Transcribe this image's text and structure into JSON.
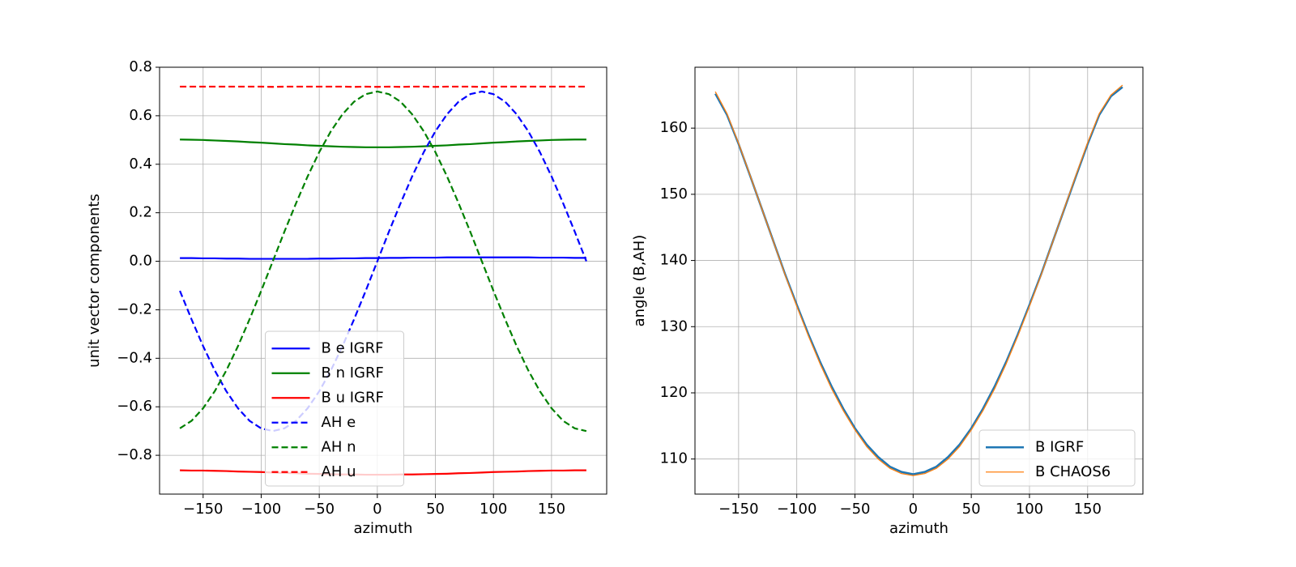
{
  "chart_data": [
    {
      "type": "line",
      "xlabel": "azimuth",
      "ylabel": "unit vector components",
      "x": [
        -170,
        -160,
        -150,
        -140,
        -130,
        -120,
        -110,
        -100,
        -90,
        -80,
        -70,
        -60,
        -50,
        -40,
        -30,
        -20,
        -10,
        0,
        10,
        20,
        30,
        40,
        50,
        60,
        70,
        80,
        90,
        100,
        110,
        120,
        130,
        140,
        150,
        160,
        170,
        180
      ],
      "series": [
        {
          "name": "B e IGRF",
          "color": "#0000ff",
          "style": "solid",
          "width": 2.2,
          "values": [
            0.013,
            0.013,
            0.012,
            0.012,
            0.011,
            0.011,
            0.01,
            0.01,
            0.01,
            0.01,
            0.01,
            0.01,
            0.011,
            0.011,
            0.012,
            0.012,
            0.013,
            0.013,
            0.014,
            0.014,
            0.015,
            0.015,
            0.015,
            0.016,
            0.016,
            0.016,
            0.016,
            0.016,
            0.016,
            0.016,
            0.016,
            0.015,
            0.015,
            0.015,
            0.014,
            0.014
          ]
        },
        {
          "name": "B n IGRF",
          "color": "#008000",
          "style": "solid",
          "width": 2.2,
          "values": [
            0.502,
            0.501,
            0.5,
            0.498,
            0.496,
            0.494,
            0.491,
            0.489,
            0.486,
            0.483,
            0.481,
            0.478,
            0.476,
            0.474,
            0.472,
            0.471,
            0.47,
            0.47,
            0.47,
            0.471,
            0.472,
            0.474,
            0.476,
            0.478,
            0.481,
            0.483,
            0.486,
            0.489,
            0.491,
            0.494,
            0.496,
            0.498,
            0.5,
            0.501,
            0.502,
            0.502
          ]
        },
        {
          "name": "B u IGRF",
          "color": "#ff0000",
          "style": "solid",
          "width": 2.2,
          "values": [
            -0.862,
            -0.863,
            -0.863,
            -0.864,
            -0.865,
            -0.867,
            -0.868,
            -0.869,
            -0.871,
            -0.873,
            -0.874,
            -0.876,
            -0.877,
            -0.878,
            -0.879,
            -0.879,
            -0.88,
            -0.88,
            -0.88,
            -0.879,
            -0.879,
            -0.878,
            -0.877,
            -0.876,
            -0.874,
            -0.873,
            -0.871,
            -0.869,
            -0.868,
            -0.867,
            -0.865,
            -0.864,
            -0.863,
            -0.863,
            -0.862,
            -0.862
          ]
        },
        {
          "name": "AH e",
          "color": "#0000ff",
          "style": "dashed",
          "width": 2.2,
          "values": [
            -0.122,
            -0.239,
            -0.35,
            -0.45,
            -0.536,
            -0.606,
            -0.658,
            -0.689,
            -0.7,
            -0.689,
            -0.658,
            -0.606,
            -0.536,
            -0.45,
            -0.35,
            -0.239,
            -0.122,
            0,
            0.122,
            0.239,
            0.35,
            0.45,
            0.536,
            0.606,
            0.658,
            0.689,
            0.7,
            0.689,
            0.658,
            0.606,
            0.536,
            0.45,
            0.35,
            0.239,
            0.122,
            0.0
          ]
        },
        {
          "name": "AH n",
          "color": "#008000",
          "style": "dashed",
          "width": 2.2,
          "values": [
            -0.689,
            -0.658,
            -0.606,
            -0.536,
            -0.45,
            -0.35,
            -0.239,
            -0.122,
            0,
            0.122,
            0.239,
            0.35,
            0.45,
            0.536,
            0.606,
            0.658,
            0.689,
            0.7,
            0.689,
            0.658,
            0.606,
            0.536,
            0.45,
            0.35,
            0.239,
            0.122,
            0,
            -0.122,
            -0.239,
            -0.35,
            -0.45,
            -0.536,
            -0.606,
            -0.658,
            -0.689,
            -0.7
          ]
        },
        {
          "name": "AH u",
          "color": "#ff0000",
          "style": "dashed",
          "width": 2.2,
          "values": [
            0.72,
            0.72,
            0.72,
            0.72,
            0.72,
            0.72,
            0.72,
            0.72,
            0.719,
            0.72,
            0.72,
            0.72,
            0.72,
            0.72,
            0.72,
            0.719,
            0.72,
            0.719,
            0.72,
            0.719,
            0.72,
            0.72,
            0.719,
            0.72,
            0.72,
            0.72,
            0.719,
            0.72,
            0.72,
            0.72,
            0.72,
            0.72,
            0.72,
            0.72,
            0.72,
            0.72
          ]
        }
      ],
      "xlim": [
        -187.5,
        197.5
      ],
      "ylim": [
        -0.96,
        0.8
      ],
      "xticks": [
        {
          "value": -150,
          "label": "−150"
        },
        {
          "value": -100,
          "label": "−100"
        },
        {
          "value": -50,
          "label": "−50"
        },
        0,
        50,
        100,
        150
      ],
      "yticks": [
        {
          "value": -0.8,
          "label": "−0.8"
        },
        {
          "value": -0.6,
          "label": "−0.6"
        },
        {
          "value": -0.4,
          "label": "−0.4"
        },
        {
          "value": -0.2,
          "label": "−0.2"
        },
        {
          "value": 0,
          "label": "0.0"
        },
        0.2,
        0.4,
        0.6,
        0.8
      ],
      "grid": true,
      "legend": "lower center"
    },
    {
      "type": "line",
      "xlabel": "azimuth",
      "ylabel": "angle (B,AH)",
      "x": [
        -170,
        -160,
        -150,
        -140,
        -130,
        -120,
        -110,
        -100,
        -90,
        -80,
        -70,
        -60,
        -50,
        -40,
        -30,
        -20,
        -10,
        0,
        10,
        20,
        30,
        40,
        50,
        60,
        70,
        80,
        90,
        100,
        110,
        120,
        130,
        140,
        150,
        160,
        170,
        180
      ],
      "series": [
        {
          "name": "B IGRF",
          "color": "#1f77b4",
          "style": "solid",
          "width": 2.5,
          "values": [
            165.2,
            162.0,
            157.6,
            152.75,
            147.8,
            142.85,
            137.9,
            133.3,
            128.85,
            124.7,
            120.95,
            117.6,
            114.65,
            112.2,
            110.3,
            108.85,
            108.05,
            107.7,
            108.05,
            108.85,
            110.3,
            112.2,
            114.65,
            117.6,
            120.95,
            124.7,
            128.85,
            133.3,
            137.9,
            142.85,
            147.8,
            152.75,
            157.6,
            162.0,
            164.8,
            166.2
          ]
        },
        {
          "name": "B CHAOS6",
          "color": "#ff7f0e",
          "style": "solid",
          "width": 1.3,
          "values": [
            165.5,
            162.2,
            157.7,
            152.8,
            147.8,
            142.8,
            137.8,
            133.1,
            128.6,
            124.4,
            120.6,
            117.3,
            114.4,
            111.9,
            110.0,
            108.6,
            107.8,
            107.5,
            107.8,
            108.6,
            110.0,
            111.9,
            114.4,
            117.3,
            120.6,
            124.4,
            128.6,
            133.1,
            137.8,
            142.8,
            147.9,
            152.9,
            157.8,
            162.2,
            165.0,
            166.5
          ]
        }
      ],
      "xlim": [
        -187.5,
        197.5
      ],
      "ylim": [
        104.7,
        169.2
      ],
      "xticks": [
        {
          "value": -150,
          "label": "−150"
        },
        {
          "value": -100,
          "label": "−100"
        },
        {
          "value": -50,
          "label": "−50"
        },
        0,
        50,
        100,
        150
      ],
      "yticks": [
        110,
        120,
        130,
        140,
        150,
        160
      ],
      "grid": true,
      "legend": "lower right"
    }
  ]
}
